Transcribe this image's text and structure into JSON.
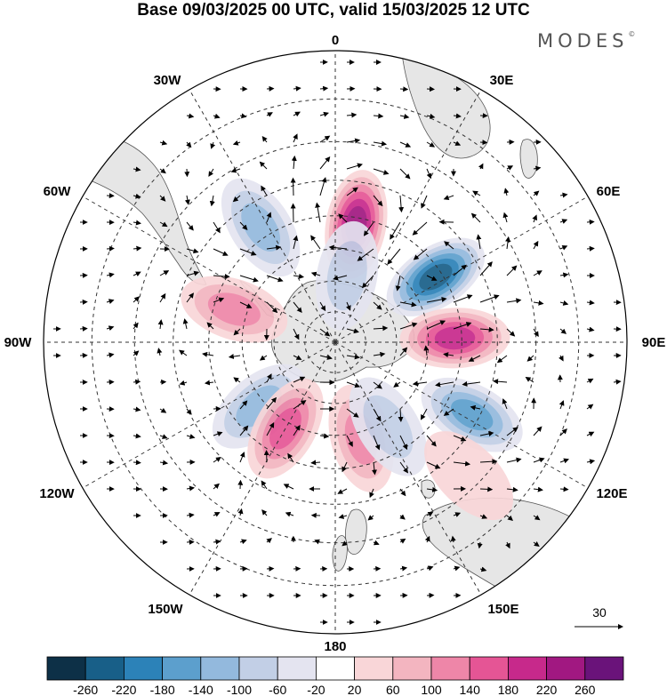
{
  "title": "Base 09/03/2025 00 UTC, valid 15/03/2025 12 UTC",
  "brand": "MODES",
  "brand_mark": "©",
  "longitude_labels": [
    "0",
    "30E",
    "60E",
    "90E",
    "120E",
    "150E",
    "180",
    "150W",
    "120W",
    "90W",
    "60W",
    "30W"
  ],
  "vector_reference": {
    "value": "30"
  },
  "colorbar": {
    "ticks": [
      "-260",
      "-220",
      "-180",
      "-140",
      "-100",
      "-60",
      "-20",
      "20",
      "60",
      "100",
      "140",
      "180",
      "220",
      "260"
    ],
    "colors": [
      "#0d3047",
      "#185f88",
      "#2c82b8",
      "#5c9fcd",
      "#93b9dd",
      "#c2cfe6",
      "#e4e4f0",
      "#ffffff",
      "#f9d6d8",
      "#f3b5c0",
      "#ee86a8",
      "#e55595",
      "#c7298b",
      "#a11881",
      "#6a137a"
    ]
  },
  "anomaly_centers": [
    {
      "lon": 10,
      "lat": -52,
      "value": 230,
      "level": "strong-positive"
    },
    {
      "lon": 57,
      "lat": -52,
      "value": -250,
      "level": "strong-negative"
    },
    {
      "lon": 88,
      "lat": -52,
      "value": 200,
      "level": "strong-positive"
    },
    {
      "lon": 118,
      "lat": -42,
      "value": -170,
      "level": "negative"
    },
    {
      "lon": 165,
      "lat": -58,
      "value": 120,
      "level": "weak-positive"
    },
    {
      "lon": 148,
      "lat": -58,
      "value": -80,
      "level": "weak-negative"
    },
    {
      "lon": 10,
      "lat": -68,
      "value": -100,
      "level": "weak-negative"
    },
    {
      "lon": 327,
      "lat": -47,
      "value": -130,
      "level": "negative"
    },
    {
      "lon": 288,
      "lat": -56,
      "value": 120,
      "level": "weak-positive"
    },
    {
      "lon": 230,
      "lat": -58,
      "value": -110,
      "level": "weak-negative"
    },
    {
      "lon": 210,
      "lat": -58,
      "value": 150,
      "level": "positive"
    },
    {
      "lon": 135,
      "lat": -33,
      "value": 60,
      "level": "weak-positive"
    }
  ]
}
